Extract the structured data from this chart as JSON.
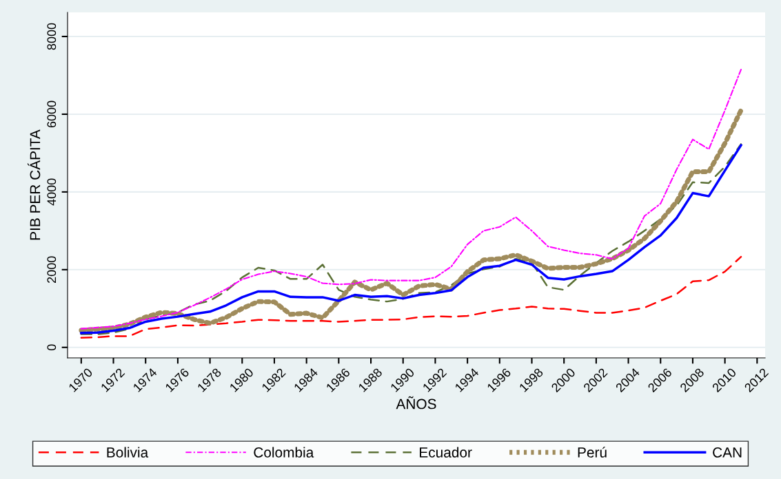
{
  "chart_data": {
    "type": "line",
    "xlabel": "AÑOS",
    "ylabel": "PIB PER CÁPITA",
    "x": [
      1970,
      1971,
      1972,
      1973,
      1974,
      1975,
      1976,
      1977,
      1978,
      1979,
      1980,
      1981,
      1982,
      1983,
      1984,
      1985,
      1986,
      1987,
      1988,
      1989,
      1990,
      1991,
      1992,
      1993,
      1994,
      1995,
      1996,
      1997,
      1998,
      1999,
      2000,
      2001,
      2002,
      2003,
      2004,
      2005,
      2006,
      2007,
      2008,
      2009,
      2010,
      2011
    ],
    "series": [
      {
        "name": "Bolivia",
        "color": "#ff0000",
        "line_style": "dashed",
        "values": [
          250,
          260,
          290,
          290,
          470,
          510,
          570,
          560,
          590,
          620,
          660,
          710,
          700,
          680,
          680,
          680,
          660,
          680,
          710,
          710,
          720,
          780,
          800,
          790,
          810,
          890,
          960,
          1000,
          1050,
          1000,
          990,
          940,
          890,
          890,
          950,
          1020,
          1200,
          1370,
          1700,
          1730,
          1950,
          2330
        ]
      },
      {
        "name": "Colombia",
        "color": "#ff00ff",
        "line_style": "dashdot",
        "values": [
          480,
          510,
          540,
          620,
          720,
          800,
          900,
          1080,
          1280,
          1500,
          1750,
          1880,
          1960,
          1900,
          1820,
          1650,
          1620,
          1640,
          1740,
          1720,
          1720,
          1720,
          1800,
          2080,
          2650,
          3000,
          3100,
          3350,
          3000,
          2600,
          2500,
          2420,
          2380,
          2280,
          2550,
          3380,
          3700,
          4580,
          5350,
          5100,
          6100,
          7150
        ]
      },
      {
        "name": "Ecuador",
        "color": "#5b7035",
        "line_style": "dashed",
        "values": [
          340,
          340,
          380,
          480,
          720,
          820,
          900,
          1100,
          1200,
          1450,
          1800,
          2050,
          1980,
          1760,
          1760,
          2130,
          1480,
          1300,
          1230,
          1180,
          1250,
          1400,
          1420,
          1600,
          1900,
          2010,
          2080,
          2280,
          2180,
          1550,
          1480,
          1850,
          2170,
          2480,
          2720,
          3000,
          3300,
          3650,
          4250,
          4230,
          4650,
          5230
        ]
      },
      {
        "name": "Perú",
        "color": "#a08c5c",
        "line_style": "dotted",
        "values": [
          440,
          470,
          500,
          600,
          780,
          900,
          870,
          720,
          620,
          770,
          1000,
          1180,
          1170,
          850,
          880,
          760,
          1200,
          1680,
          1480,
          1650,
          1350,
          1580,
          1620,
          1500,
          1950,
          2250,
          2280,
          2380,
          2220,
          2030,
          2060,
          2060,
          2150,
          2280,
          2500,
          2800,
          3250,
          3750,
          4520,
          4520,
          5250,
          6100
        ]
      },
      {
        "name": "CAN",
        "color": "#0000ff",
        "line_style": "solid",
        "values": [
          370,
          380,
          430,
          500,
          660,
          740,
          790,
          860,
          920,
          1080,
          1290,
          1440,
          1440,
          1300,
          1290,
          1290,
          1200,
          1350,
          1300,
          1320,
          1260,
          1350,
          1400,
          1470,
          1810,
          2050,
          2100,
          2250,
          2130,
          1790,
          1750,
          1830,
          1890,
          1960,
          2250,
          2580,
          2880,
          3330,
          3970,
          3890,
          4550,
          5200
        ]
      }
    ],
    "xlim": [
      1969.15,
      2012.5
    ],
    "ylim": [
      -270,
      8620
    ],
    "xticks": [
      1970,
      1972,
      1974,
      1976,
      1978,
      1980,
      1982,
      1984,
      1986,
      1988,
      1990,
      1992,
      1994,
      1996,
      1998,
      2000,
      2002,
      2004,
      2006,
      2008,
      2010,
      2012
    ],
    "yticks": [
      0,
      2000,
      4000,
      6000,
      8000
    ],
    "grid": "y",
    "legend": "bottom"
  }
}
